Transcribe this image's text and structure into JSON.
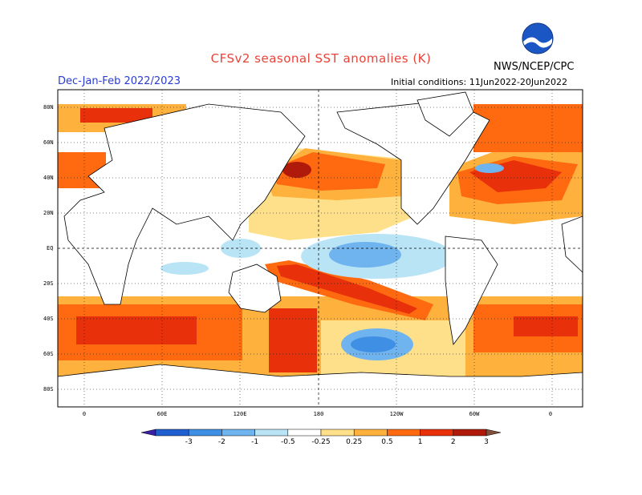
{
  "header": {
    "title": "CFSv2 seasonal SST anomalies (K)",
    "agency": "NWS/NCEP/CPC",
    "season": "Dec-Jan-Feb 2022/2023",
    "initial_conditions": "Initial conditions: 11Jun2022-20Jun2022"
  },
  "map": {
    "lat_labels": [
      "80N",
      "60N",
      "40N",
      "20N",
      "EQ",
      "20S",
      "40S",
      "60S",
      "80S"
    ],
    "lon_labels": [
      "0",
      "60E",
      "120E",
      "180",
      "120W",
      "60W",
      "0"
    ]
  },
  "colorbar": {
    "labels": [
      "-3",
      "-2",
      "-1",
      "-0.5",
      "-0.25",
      "0.25",
      "0.5",
      "1",
      "2",
      "3"
    ],
    "colors": [
      "#3a1fa8",
      "#1f5fd0",
      "#3f8fe4",
      "#6fb4ee",
      "#b8e4f5",
      "#ffffff",
      "#ffe08a",
      "#ffb13d",
      "#ff6a10",
      "#e8300a",
      "#b01a0a",
      "#80503a"
    ]
  },
  "colors": {
    "title": "#e8433a",
    "season": "#2a3bd0",
    "land": "#ffffff",
    "coast": "#000000"
  }
}
